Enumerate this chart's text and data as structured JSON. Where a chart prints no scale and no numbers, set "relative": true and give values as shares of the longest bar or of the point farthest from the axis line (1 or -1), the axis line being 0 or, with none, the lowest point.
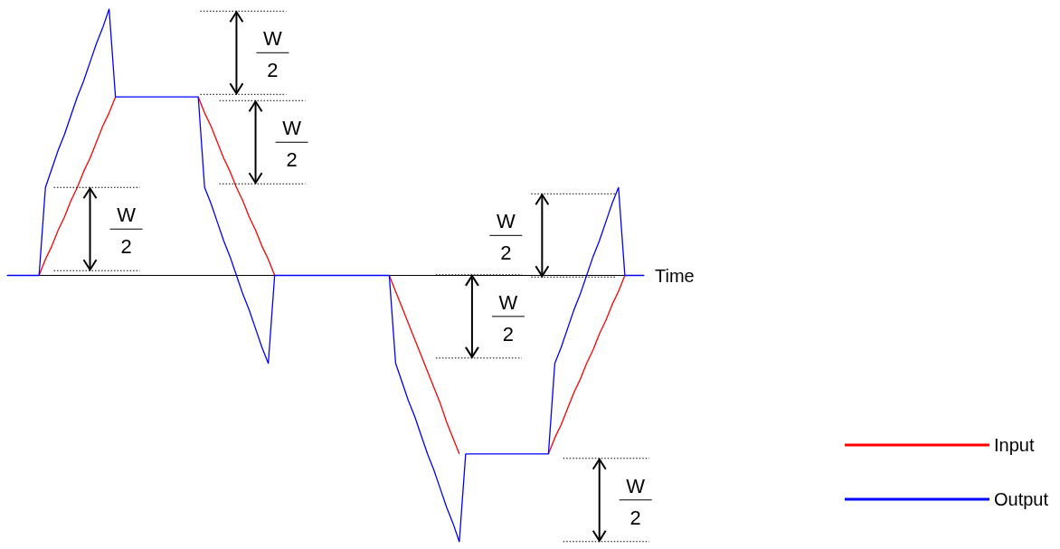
{
  "chart_data": {
    "type": "line",
    "relative": true,
    "xlabel": "Time",
    "categories": [
      null,
      null,
      null,
      null,
      null,
      null,
      null,
      null,
      null,
      null,
      null,
      null,
      null,
      null,
      null,
      null,
      null,
      null,
      null,
      null,
      null,
      null,
      null,
      null,
      null,
      null,
      null,
      null,
      null,
      null,
      null,
      null,
      null,
      null,
      null,
      null,
      null,
      null,
      null,
      null,
      null,
      null,
      null,
      null,
      null,
      null,
      null,
      null,
      null,
      null,
      null,
      null,
      null,
      null,
      null,
      null,
      null,
      null,
      null,
      null,
      null,
      null,
      null,
      null,
      null,
      null,
      null,
      null,
      null,
      null,
      null,
      null,
      null,
      null,
      null,
      null,
      null,
      null,
      null,
      null,
      null,
      null,
      null,
      null,
      null,
      null,
      null,
      null,
      null,
      null,
      null,
      null,
      null,
      null,
      null,
      null,
      null,
      null,
      null,
      null,
      null
    ],
    "legend": "bottom right",
    "marker": "none",
    "line_style": "solid",
    "series": [
      {
        "name": "Input",
        "color": "#ff0000",
        "values": [
          null,
          null,
          null,
          null,
          null,
          0,
          0.06,
          0.11,
          0.17,
          0.22,
          0.28,
          0.33,
          0.39,
          0.44,
          0.5,
          0.56,
          0.61,
          0.67,
          null,
          null,
          null,
          null,
          null,
          null,
          null,
          null,
          null,
          null,
          null,
          null,
          0.67,
          0.61,
          0.56,
          0.5,
          0.44,
          0.39,
          0.33,
          0.28,
          0.22,
          0.17,
          0.11,
          0.06,
          0,
          null,
          null,
          null,
          null,
          null,
          null,
          null,
          null,
          null,
          null,
          null,
          null,
          null,
          null,
          null,
          null,
          null,
          0,
          -0.06,
          -0.12,
          -0.18,
          -0.24,
          -0.3,
          -0.36,
          -0.42,
          -0.48,
          -0.55,
          -0.61,
          -0.67,
          null,
          null,
          null,
          null,
          null,
          null,
          null,
          null,
          null,
          null,
          null,
          null,
          null,
          -0.67,
          -0.61,
          -0.56,
          -0.5,
          -0.44,
          -0.39,
          -0.33,
          -0.28,
          -0.22,
          -0.17,
          -0.11,
          -0.06,
          0,
          null,
          null,
          null
        ]
      },
      {
        "name": "Output",
        "color": "#0000ff",
        "values": [
          0,
          0,
          0,
          0,
          0,
          0,
          0.33,
          0.4,
          0.47,
          0.53,
          0.6,
          0.67,
          0.73,
          0.8,
          0.87,
          0.93,
          1,
          0.67,
          0.67,
          0.67,
          0.67,
          0.67,
          0.67,
          0.67,
          0.67,
          0.67,
          0.67,
          0.67,
          0.67,
          0.67,
          0.67,
          0.33,
          0.27,
          0.2,
          0.13,
          0.07,
          0,
          -0.07,
          -0.13,
          -0.2,
          -0.27,
          -0.33,
          0,
          0,
          0,
          0,
          0,
          0,
          0,
          0,
          0,
          0,
          0,
          0,
          0,
          0,
          0,
          0,
          0,
          0,
          0,
          -0.33,
          -0.4,
          -0.47,
          -0.53,
          -0.6,
          -0.67,
          -0.73,
          -0.8,
          -0.87,
          -0.93,
          -1,
          -0.67,
          -0.67,
          -0.67,
          -0.67,
          -0.67,
          -0.67,
          -0.67,
          -0.67,
          -0.67,
          -0.67,
          -0.67,
          -0.67,
          -0.67,
          -0.67,
          -0.33,
          -0.27,
          -0.2,
          -0.13,
          -0.07,
          0,
          0.07,
          0.13,
          0.2,
          0.27,
          0.33,
          0,
          0,
          0,
          0
        ]
      }
    ],
    "annotations": [
      "W\n2",
      "W\n2",
      "W\n2",
      "W\n2",
      "W\n2",
      "W\n2"
    ]
  }
}
